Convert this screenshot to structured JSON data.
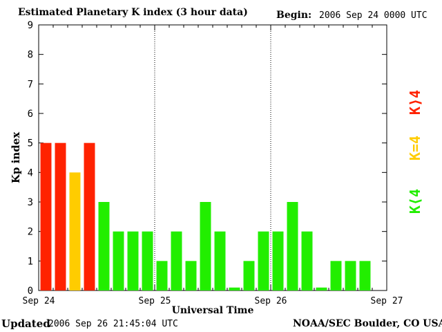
{
  "header": {
    "title": "Estimated Planetary K index (3 hour data)",
    "begin_label": "Begin:",
    "begin_value": "2006 Sep 24 0000 UTC"
  },
  "footer": {
    "updated_label": "Updated",
    "updated_value": "2006 Sep 26 21:45:04 UTC",
    "source": "NOAA/SEC Boulder, CO USA"
  },
  "legend": {
    "above": "K⟩4",
    "equal": "K=4",
    "below": "K⟨4"
  },
  "colors": {
    "above": "#ff2200",
    "equal": "#ffcc00",
    "below": "#22ee00",
    "axis": "#000000",
    "grid": "#000000"
  },
  "chart_data": {
    "type": "bar",
    "ylabel": "Kp index",
    "xlabel": "Universal Time",
    "ylim": [
      0,
      9
    ],
    "yticks": [
      0,
      1,
      2,
      3,
      4,
      5,
      6,
      7,
      8,
      9
    ],
    "x_ticks": [
      "Sep 24",
      "Sep 25",
      "Sep 26",
      "Sep 27"
    ],
    "intervals_per_day": 8,
    "total_intervals": 24,
    "values": [
      5,
      5,
      4,
      5,
      3,
      2,
      2,
      2,
      1,
      2,
      1,
      3,
      2,
      0.1,
      1,
      2,
      2,
      3,
      2,
      0.1,
      1,
      1,
      1
    ],
    "color_rule": "red if K>4, yellow if K=4, green if K<4",
    "day_separators": "dotted vertical lines at day boundaries"
  }
}
